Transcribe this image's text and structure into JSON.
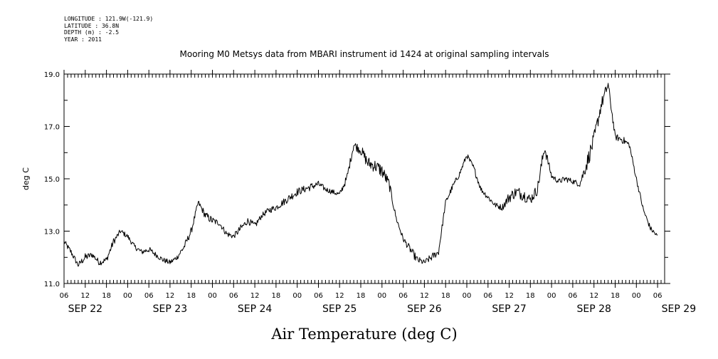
{
  "header": {
    "longitude": "LONGITUDE : 121.9W(-121.9)",
    "latitude": "LATITUDE : 36.8N",
    "depth": "DEPTH (m) : -2.5",
    "year": "YEAR : 2011"
  },
  "chart_data": {
    "type": "line",
    "title": "Mooring M0 Metsys data from MBARI instrument id 1424 at original sampling intervals",
    "xlabel": "Air Temperature (deg C)",
    "ylabel": "deg C",
    "ylim": [
      11.0,
      19.0
    ],
    "yticks": [
      "11.0",
      "13.0",
      "15.0",
      "17.0",
      "19.0"
    ],
    "xlim": [
      "2011-09-22T06:00",
      "2011-09-29T08:00"
    ],
    "hour_tick_labels": [
      "06",
      "12",
      "18",
      "00",
      "06",
      "12",
      "18",
      "00",
      "06",
      "12",
      "18",
      "00",
      "06",
      "12",
      "18",
      "00",
      "06",
      "12",
      "18",
      "00",
      "06",
      "12",
      "18",
      "00",
      "06",
      "12",
      "18",
      "00",
      "06"
    ],
    "date_labels": [
      "SEP 22",
      "SEP 23",
      "SEP 24",
      "SEP 25",
      "SEP 26",
      "SEP 27",
      "SEP 28",
      "SEP 29"
    ],
    "grid": false,
    "series": [
      {
        "color": "#000000",
        "x": [
          "2011-09-22T06:00",
          "2011-09-22T08:00",
          "2011-09-22T10:00",
          "2011-09-22T12:00",
          "2011-09-22T14:00",
          "2011-09-22T16:00",
          "2011-09-22T18:00",
          "2011-09-22T20:00",
          "2011-09-22T22:00",
          "2011-09-23T00:00",
          "2011-09-23T02:00",
          "2011-09-23T04:00",
          "2011-09-23T06:00",
          "2011-09-23T08:00",
          "2011-09-23T10:00",
          "2011-09-23T12:00",
          "2011-09-23T14:00",
          "2011-09-23T16:00",
          "2011-09-23T18:00",
          "2011-09-23T20:00",
          "2011-09-23T22:00",
          "2011-09-24T00:00",
          "2011-09-24T02:00",
          "2011-09-24T04:00",
          "2011-09-24T06:00",
          "2011-09-24T08:00",
          "2011-09-24T10:00",
          "2011-09-24T12:00",
          "2011-09-24T14:00",
          "2011-09-24T16:00",
          "2011-09-24T18:00",
          "2011-09-24T20:00",
          "2011-09-24T22:00",
          "2011-09-25T00:00",
          "2011-09-25T02:00",
          "2011-09-25T04:00",
          "2011-09-25T06:00",
          "2011-09-25T08:00",
          "2011-09-25T10:00",
          "2011-09-25T12:00",
          "2011-09-25T14:00",
          "2011-09-25T16:00",
          "2011-09-25T18:00",
          "2011-09-25T20:00",
          "2011-09-25T22:00",
          "2011-09-26T00:00",
          "2011-09-26T02:00",
          "2011-09-26T04:00",
          "2011-09-26T06:00",
          "2011-09-26T08:00",
          "2011-09-26T10:00",
          "2011-09-26T12:00",
          "2011-09-26T14:00",
          "2011-09-26T16:00",
          "2011-09-26T18:00",
          "2011-09-26T20:00",
          "2011-09-26T22:00",
          "2011-09-27T00:00",
          "2011-09-27T02:00",
          "2011-09-27T04:00",
          "2011-09-27T06:00",
          "2011-09-27T08:00",
          "2011-09-27T10:00",
          "2011-09-27T12:00",
          "2011-09-27T14:00",
          "2011-09-27T16:00",
          "2011-09-27T18:00",
          "2011-09-27T20:00",
          "2011-09-27T22:00",
          "2011-09-28T00:00",
          "2011-09-28T02:00",
          "2011-09-28T04:00",
          "2011-09-28T06:00",
          "2011-09-28T08:00",
          "2011-09-28T10:00",
          "2011-09-28T12:00",
          "2011-09-28T14:00",
          "2011-09-28T16:00",
          "2011-09-28T18:00",
          "2011-09-28T20:00",
          "2011-09-28T22:00",
          "2011-09-29T00:00",
          "2011-09-29T02:00",
          "2011-09-29T04:00",
          "2011-09-29T06:00"
        ],
        "y": [
          12.6,
          12.2,
          11.7,
          12.0,
          12.1,
          11.8,
          11.9,
          12.6,
          13.0,
          12.8,
          12.4,
          12.2,
          12.3,
          12.1,
          11.9,
          11.8,
          12.0,
          12.4,
          13.0,
          14.1,
          13.6,
          13.4,
          13.3,
          12.9,
          12.8,
          13.1,
          13.4,
          13.2,
          13.6,
          13.8,
          13.9,
          14.1,
          14.3,
          14.5,
          14.6,
          14.7,
          14.8,
          14.6,
          14.5,
          14.4,
          15.0,
          16.3,
          16.1,
          15.6,
          15.5,
          15.3,
          14.8,
          13.5,
          12.7,
          12.3,
          11.9,
          11.8,
          12.0,
          12.2,
          14.1,
          14.7,
          15.2,
          15.9,
          15.4,
          14.6,
          14.3,
          14.0,
          13.9,
          14.3,
          14.5,
          14.4,
          14.2,
          14.6,
          16.2,
          15.1,
          14.9,
          15.0,
          14.9,
          14.8,
          15.6,
          16.5,
          17.8,
          18.6,
          16.6,
          16.5,
          16.3,
          15.0,
          13.8,
          13.1,
          12.8
        ],
        "jitter": [
          0.1,
          0.12,
          0.1,
          0.15,
          0.1,
          0.12,
          0.12,
          0.14,
          0.1,
          0.1,
          0.1,
          0.1,
          0.12,
          0.1,
          0.1,
          0.1,
          0.1,
          0.14,
          0.14,
          0.1,
          0.15,
          0.15,
          0.1,
          0.12,
          0.1,
          0.15,
          0.12,
          0.14,
          0.1,
          0.12,
          0.12,
          0.14,
          0.15,
          0.15,
          0.14,
          0.15,
          0.12,
          0.1,
          0.1,
          0.1,
          0.15,
          0.15,
          0.2,
          0.25,
          0.25,
          0.28,
          0.2,
          0.1,
          0.1,
          0.15,
          0.15,
          0.1,
          0.15,
          0.12,
          0.1,
          0.12,
          0.1,
          0.1,
          0.12,
          0.1,
          0.12,
          0.1,
          0.12,
          0.22,
          0.22,
          0.25,
          0.2,
          0.22,
          0.25,
          0.1,
          0.1,
          0.12,
          0.1,
          0.12,
          0.3,
          0.3,
          0.25,
          0.2,
          0.12,
          0.15,
          0.12,
          0.1,
          0.1,
          0.1,
          0.1
        ]
      }
    ]
  }
}
